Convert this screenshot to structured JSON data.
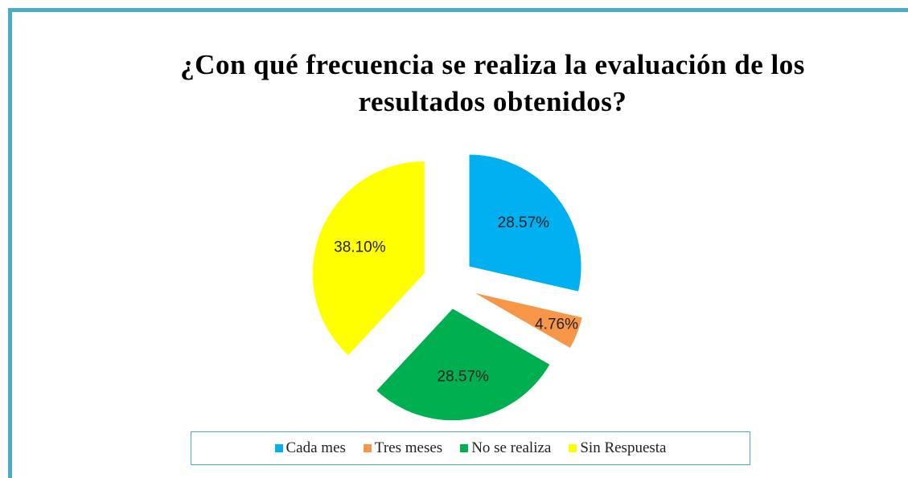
{
  "chart_data": {
    "type": "pie",
    "title": "¿Con qué frecuencia se realiza la evaluación de los resultados obtenidos?",
    "categories": [
      "Cada mes",
      "Tres meses",
      "No se realiza",
      "Sin Respuesta"
    ],
    "values": [
      28.57,
      4.76,
      28.57,
      38.1
    ],
    "value_labels": [
      "28.57%",
      "4.76%",
      "28.57%",
      "38.10%"
    ],
    "colors": [
      "#00b0f0",
      "#f79646",
      "#00b050",
      "#ffff00"
    ],
    "exploded": true,
    "legend": "bottom"
  }
}
